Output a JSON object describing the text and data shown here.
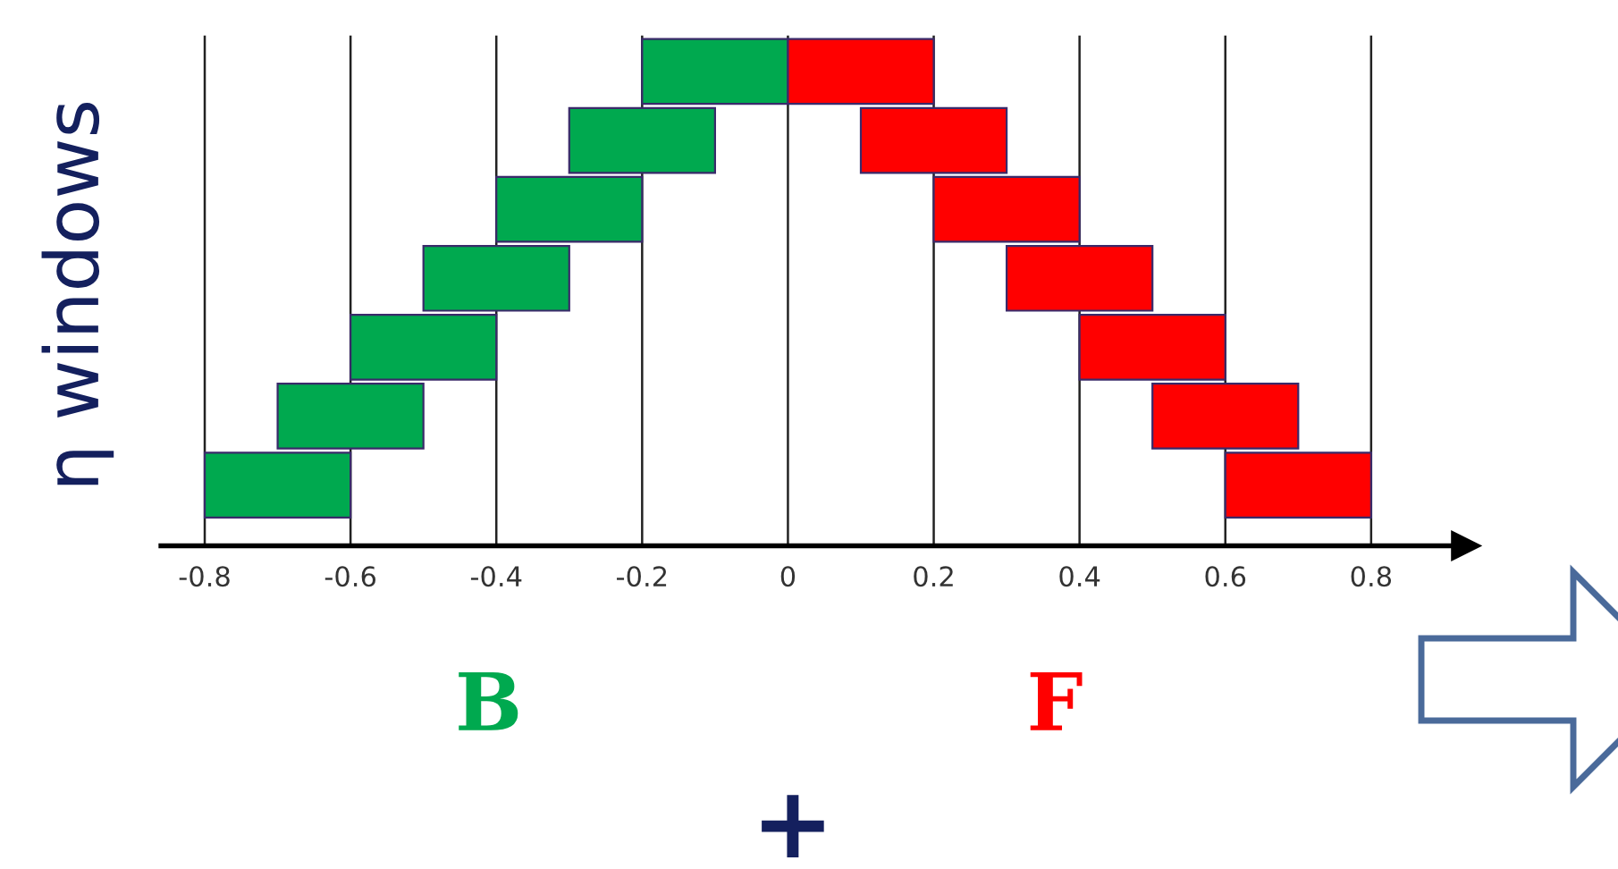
{
  "chart_data": {
    "type": "bar",
    "orientation": "horizontal",
    "ylabel": "η windows",
    "categories": [
      null,
      null,
      null,
      null,
      null,
      null,
      null
    ],
    "series": [
      {
        "color": "#00a94f",
        "values": [
          0.2,
          0.2,
          0.2,
          0.2,
          0.2,
          0.2,
          0.2
        ],
        "base": [
          -0.2,
          -0.3,
          -0.4,
          -0.5,
          -0.6,
          -0.7,
          -0.8
        ]
      },
      {
        "color": "#ff0000",
        "values": [
          0.2,
          0.2,
          0.2,
          0.2,
          0.2,
          0.2,
          0.2
        ],
        "base": [
          0,
          0.1,
          0.2,
          0.3,
          0.4,
          0.5,
          0.6
        ]
      }
    ],
    "xlim": [
      -0.86,
      0.93
    ],
    "xticks": [
      -0.8,
      -0.6,
      -0.4,
      -0.2,
      0,
      0.2,
      0.4,
      0.6,
      0.8
    ],
    "grid": "x",
    "annotations": [
      "B",
      "F",
      "+"
    ]
  }
}
